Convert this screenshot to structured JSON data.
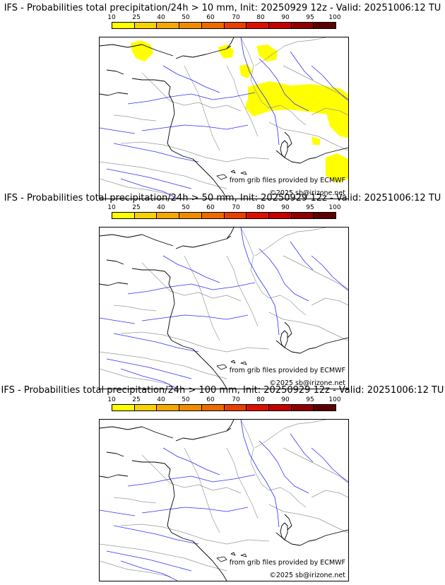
{
  "colorbar": {
    "ticks": [
      "10",
      "25",
      "40",
      "50",
      "60",
      "70",
      "80",
      "90",
      "95",
      "100"
    ],
    "colors": [
      "#ffff00",
      "#f9d100",
      "#f5a800",
      "#f08b00",
      "#ec6a00",
      "#e84000",
      "#dc1000",
      "#c40000",
      "#8e0000",
      "#5c0000"
    ]
  },
  "map_colors": {
    "rivers": "#3030ff",
    "borders": "#999999",
    "coast": "#000000",
    "precip": "#ffff00"
  },
  "panels": [
    {
      "title": "IFS - Probabilities total precipitation/24h > 10 mm, Init: 20250929 12z - Valid: 20251006:12 TU",
      "credit_grib": "from grib files provided by ECMWF",
      "credit_copyright": "©2025 sb@irizone.net",
      "has_precip": true
    },
    {
      "title": "IFS - Probabilities total precipitation/24h > 50 mm, Init: 20250929 12z - Valid: 20251006:12 TU",
      "credit_grib": "from grib files provided by ECMWF",
      "credit_copyright": "©2025 sb@irizone.net",
      "has_precip": false
    },
    {
      "title": "IFS - Probabilities total precipitation/24h > 100 mm, Init: 20250929 12z - Valid: 20251006:12 TU",
      "credit_grib": "from grib files provided by ECMWF",
      "credit_copyright": "©2025 sb@irizone.net",
      "has_precip": false
    }
  ]
}
